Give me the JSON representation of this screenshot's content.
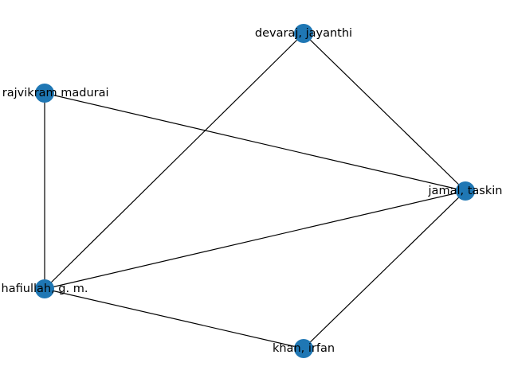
{
  "graph": {
    "node_color": "#1f77b4",
    "edge_color": "#000000",
    "nodes": [
      {
        "id": "devaraj",
        "label": "devaraj, jayanthi"
      },
      {
        "id": "rajvikram",
        "label": "an, rajvikram madurai"
      },
      {
        "id": "jamal",
        "label": "jamal, taskin"
      },
      {
        "id": "shafiullah",
        "label": "hafiullah, g. m."
      },
      {
        "id": "khan",
        "label": "khan, irfan"
      }
    ],
    "edges": [
      [
        "devaraj",
        "jamal"
      ],
      [
        "devaraj",
        "shafiullah"
      ],
      [
        "rajvikram",
        "jamal"
      ],
      [
        "rajvikram",
        "shafiullah"
      ],
      [
        "jamal",
        "shafiullah"
      ],
      [
        "jamal",
        "khan"
      ],
      [
        "shafiullah",
        "khan"
      ]
    ]
  }
}
